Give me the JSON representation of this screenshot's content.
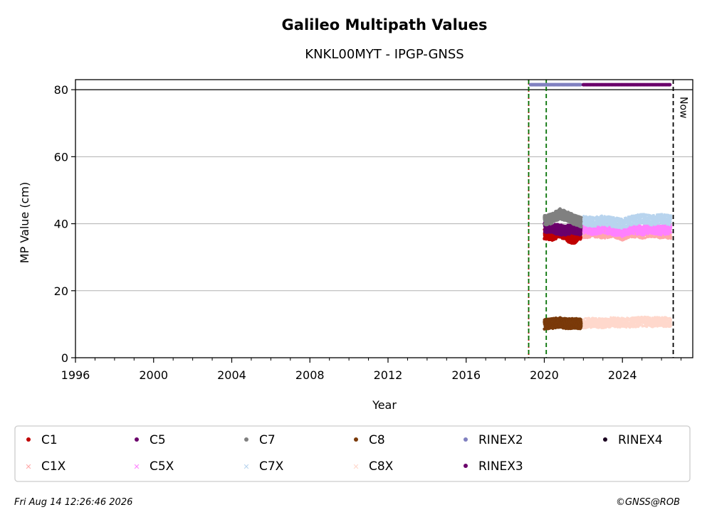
{
  "chart_data": {
    "type": "scatter",
    "title": "Galileo Multipath Values",
    "subtitle": "KNKL00MYT - IPGP-GNSS",
    "xlabel": "Year",
    "ylabel": "MP Value (cm)",
    "xlim": [
      1996,
      2027.6
    ],
    "ylim": [
      0,
      83
    ],
    "x_ticks": [
      "1996",
      "2000",
      "2004",
      "2008",
      "2012",
      "2016",
      "2020",
      "2024"
    ],
    "y_ticks": [
      "0",
      "20",
      "40",
      "60",
      "80"
    ],
    "grid": "horizontal",
    "legend_position": "bottom",
    "series": [
      {
        "name": "C1",
        "color": "#c00000",
        "marker": "dot",
        "x": [
          2020.0,
          2020.4,
          2020.8,
          2021.2,
          2021.5,
          2021.9
        ],
        "y": [
          37.0,
          36.5,
          37.5,
          36.0,
          35.5,
          37.0
        ]
      },
      {
        "name": "C1X",
        "color": "#ffa8a8",
        "marker": "x",
        "x": [
          2022.0,
          2022.5,
          2023.0,
          2023.5,
          2024.0,
          2024.5,
          2025.0,
          2025.5,
          2026.0,
          2026.5
        ],
        "y": [
          37.0,
          37.5,
          37.0,
          37.5,
          36.5,
          37.5,
          37.0,
          37.5,
          37.0,
          37.0
        ]
      },
      {
        "name": "C5",
        "color": "#6b006b",
        "marker": "dot",
        "x": [
          2020.0,
          2020.5,
          2021.0,
          2021.5,
          2021.9
        ],
        "y": [
          39.0,
          38.5,
          38.0,
          38.5,
          38.0
        ]
      },
      {
        "name": "C5X",
        "color": "#ff80ff",
        "marker": "x",
        "x": [
          2022.0,
          2022.5,
          2023.0,
          2023.5,
          2024.0,
          2024.5,
          2025.0,
          2025.5,
          2026.0,
          2026.5
        ],
        "y": [
          38.5,
          38.0,
          38.5,
          38.0,
          37.5,
          38.5,
          38.0,
          38.5,
          38.0,
          38.5
        ]
      },
      {
        "name": "C7",
        "color": "#808080",
        "marker": "dot",
        "x": [
          2020.0,
          2020.4,
          2020.8,
          2021.2,
          2021.6,
          2021.9
        ],
        "y": [
          41.0,
          41.5,
          43.0,
          42.0,
          41.0,
          40.5
        ]
      },
      {
        "name": "C7X",
        "color": "#b8d4ee",
        "marker": "x",
        "x": [
          2022.0,
          2022.5,
          2023.0,
          2023.5,
          2024.0,
          2024.5,
          2025.0,
          2025.5,
          2026.0,
          2026.5
        ],
        "y": [
          41.0,
          40.5,
          41.0,
          40.5,
          40.0,
          41.0,
          41.5,
          41.0,
          41.5,
          41.0
        ]
      },
      {
        "name": "C8",
        "color": "#7a3a0a",
        "marker": "dot",
        "x": [
          2020.0,
          2020.4,
          2020.8,
          2021.2,
          2021.6,
          2021.9
        ],
        "y": [
          10.0,
          10.2,
          10.5,
          10.1,
          10.3,
          10.0
        ]
      },
      {
        "name": "C8X",
        "color": "#ffd8cc",
        "marker": "x",
        "x": [
          2022.0,
          2022.5,
          2023.0,
          2023.5,
          2024.0,
          2024.5,
          2025.0,
          2025.5,
          2026.0,
          2026.5
        ],
        "y": [
          10.2,
          10.5,
          10.3,
          10.6,
          10.4,
          10.5,
          10.8,
          10.6,
          10.7,
          10.6
        ]
      },
      {
        "name": "RINEX2",
        "color": "#8080c0",
        "marker": "dot",
        "x": [
          2019.3,
          2021.9
        ],
        "y": [
          81.5,
          81.5
        ]
      },
      {
        "name": "RINEX3",
        "color": "#6b006b",
        "marker": "dot",
        "x": [
          2022.0,
          2026.5
        ],
        "y": [
          81.5,
          81.5
        ]
      },
      {
        "name": "RINEX4",
        "color": "#1a0020",
        "marker": "dot",
        "x": [],
        "y": []
      }
    ],
    "reference_lines": [
      {
        "x": 2019.2,
        "color": "#d00000",
        "style": "dotted"
      },
      {
        "x": 2019.2,
        "color": "#007000",
        "style": "dashed"
      },
      {
        "x": 2020.1,
        "color": "#007000",
        "style": "dashed"
      },
      {
        "x": 2026.6,
        "color": "#000000",
        "style": "dashed",
        "label": "Now"
      }
    ],
    "hline": {
      "y": 80,
      "color": "#000000"
    }
  },
  "footer": {
    "date": "Fri Aug 14 12:26:46 2026",
    "credit": "©GNSS@ROB"
  }
}
